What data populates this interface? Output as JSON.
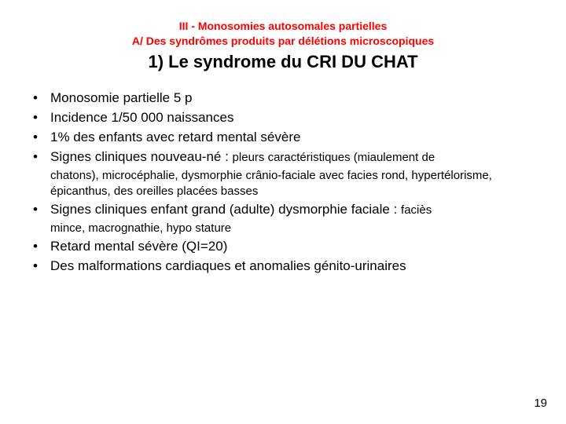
{
  "header": {
    "super_title": "III - Monosomies autosomales partielles",
    "sub_title": "A/ Des syndrômes produits par délétions microscopiques",
    "main_title": "1) Le syndrome du CRI DU CHAT"
  },
  "bullets": [
    {
      "text": "Monosomie partielle 5 p"
    },
    {
      "text": "Incidence 1/50 000 naissances"
    },
    {
      "text": "1% des enfants avec retard mental sévère"
    },
    {
      "text": "Signes cliniques nouveau-né : ",
      "tail": "pleurs caractéristiques (miaulement de",
      "cont": "chatons), microcéphalie, dysmorphie crânio-faciale avec facies rond, hypertélorisme, épicanthus, des oreilles placées basses"
    },
    {
      "text": "Signes cliniques enfant grand (adulte) dysmorphie faciale : ",
      "tail": "faciès",
      "cont": "mince, macrognathie, hypo stature"
    },
    {
      "text": "Retard mental sévère (QI=20)"
    },
    {
      "text": "Des malformations cardiaques et anomalies génito-urinaires"
    }
  ],
  "page_number": "19",
  "colors": {
    "title_color": "#ff0000",
    "body_color": "#000000",
    "background": "#ffffff"
  },
  "fonts": {
    "title_size_pt": 14,
    "main_title_size_pt": 22,
    "body_size_pt": 17,
    "small_tail_size_pt": 15
  }
}
